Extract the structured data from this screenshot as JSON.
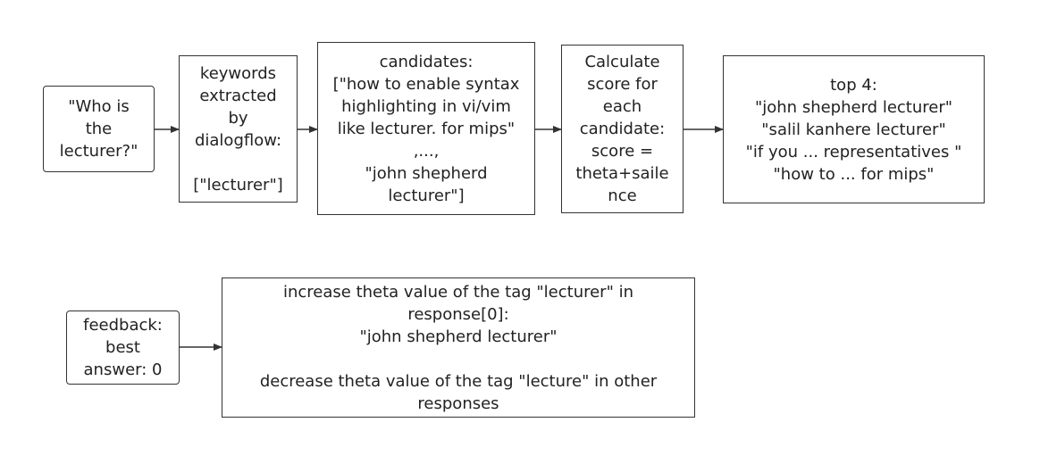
{
  "nodes": {
    "question": {
      "lines": [
        "\"Who is",
        "the",
        "lecturer?\""
      ]
    },
    "keywords": {
      "lines": [
        "keywords",
        "extracted",
        "by",
        "dialogflow:",
        "",
        "[\"lecturer\"]"
      ]
    },
    "candidates": {
      "lines": [
        "candidates:",
        "[\"how to enable syntax",
        "highlighting in vi/vim",
        "like lecturer. for mips\"",
        ",...,",
        "\"john shepherd",
        "lecturer\"]"
      ]
    },
    "score": {
      "lines": [
        "Calculate",
        "score for",
        "each",
        "candidate:",
        "score =",
        "theta+saile",
        "nce"
      ]
    },
    "top4": {
      "lines": [
        "top 4:",
        "\"john shepherd lecturer\"",
        "\"salil kanhere lecturer\"",
        "\"if you ... representatives \"",
        "\"how to ... for mips\""
      ]
    },
    "feedback": {
      "lines": [
        "feedback:",
        "best",
        "answer: 0"
      ]
    },
    "update": {
      "lines": [
        "increase theta value of the tag \"lecturer\" in",
        "response[0]:",
        "\"john shepherd lecturer\"",
        "",
        "decrease theta value of the tag \"lecture\" in other",
        "responses"
      ]
    }
  },
  "colors": {
    "stroke": "#333333",
    "text": "#222222",
    "background": "#ffffff"
  }
}
